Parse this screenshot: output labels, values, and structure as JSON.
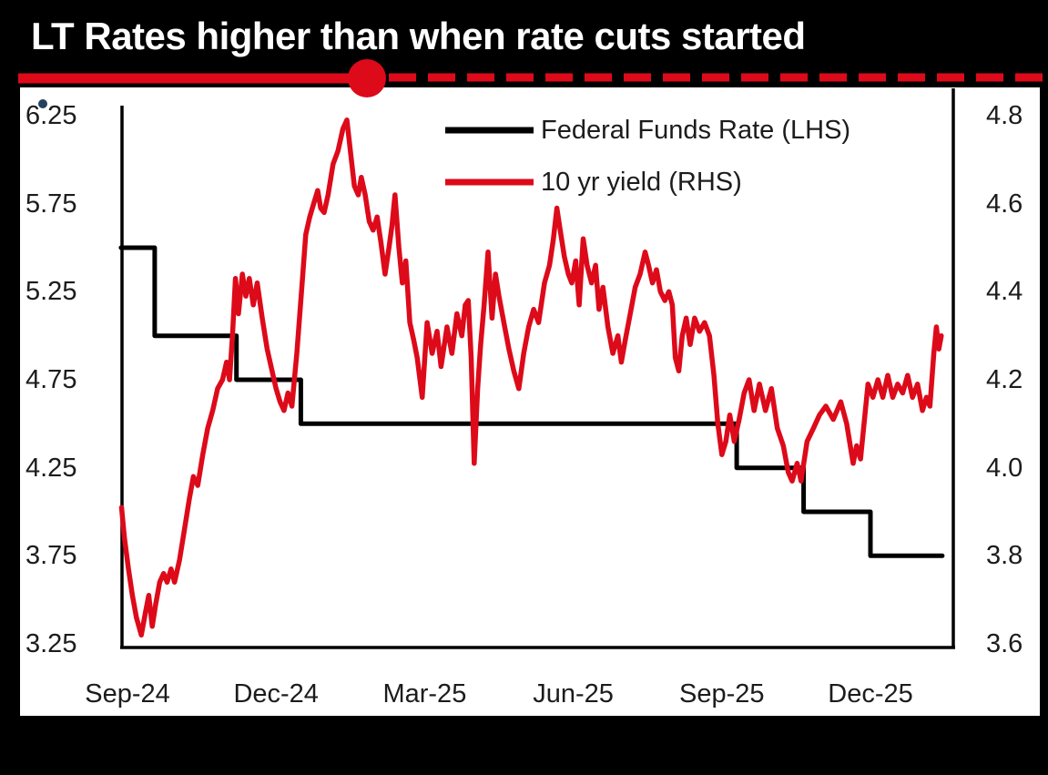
{
  "header": {
    "title": "LT Rates higher than when rate cuts started"
  },
  "decor": {
    "background": "#000000",
    "panel_bg": "#ffffff",
    "title_color": "#ffffff",
    "text_color": "#1c1c1c",
    "divider_color": "#dd0a1a",
    "stray_dot_color": "#25415f"
  },
  "chart_data": {
    "type": "line",
    "title": "LT Rates higher than when rate cuts started",
    "grid": false,
    "legend_position": "top-center-inside",
    "x_axis": {
      "unit": "months since Sep-2024",
      "tick_labels": [
        "Sep-24",
        "Dec-24",
        "Mar-25",
        "Jun-25",
        "Sep-25",
        "Dec-25"
      ],
      "tick_positions_months": [
        0,
        3,
        6,
        9,
        12,
        15
      ]
    },
    "left_axis": {
      "tick_labels": [
        "6.25",
        "5.75",
        "5.25",
        "4.75",
        "4.25",
        "3.75",
        "3.25"
      ],
      "range": [
        3.25,
        6.25
      ]
    },
    "right_axis": {
      "tick_labels": [
        "4.8",
        "4.6",
        "4.4",
        "4.2",
        "4.0",
        "3.8",
        "3.6"
      ],
      "range": [
        3.6,
        4.8
      ]
    },
    "series": [
      {
        "name": "Federal Funds Rate (LHS)",
        "axis": "left",
        "style": "step",
        "color": "#000000",
        "end_month": 16.45,
        "points": [
          [
            -0.13,
            5.5
          ],
          [
            0.55,
            5.0
          ],
          [
            2.2,
            4.75
          ],
          [
            3.5,
            4.5
          ],
          [
            12.3,
            4.25
          ],
          [
            13.65,
            4.0
          ],
          [
            15.0,
            3.75
          ]
        ]
      },
      {
        "name": "10 yr yield (RHS)",
        "axis": "right",
        "style": "line",
        "color": "#dd0a1a",
        "points": [
          [
            -0.12,
            3.91
          ],
          [
            -0.06,
            3.84
          ],
          [
            0.02,
            3.77
          ],
          [
            0.1,
            3.71
          ],
          [
            0.18,
            3.66
          ],
          [
            0.28,
            3.62
          ],
          [
            0.36,
            3.67
          ],
          [
            0.43,
            3.71
          ],
          [
            0.5,
            3.64
          ],
          [
            0.57,
            3.69
          ],
          [
            0.65,
            3.74
          ],
          [
            0.73,
            3.76
          ],
          [
            0.8,
            3.74
          ],
          [
            0.88,
            3.77
          ],
          [
            0.95,
            3.74
          ],
          [
            1.05,
            3.79
          ],
          [
            1.15,
            3.86
          ],
          [
            1.25,
            3.93
          ],
          [
            1.33,
            3.98
          ],
          [
            1.42,
            3.96
          ],
          [
            1.52,
            4.03
          ],
          [
            1.62,
            4.09
          ],
          [
            1.72,
            4.13
          ],
          [
            1.82,
            4.18
          ],
          [
            1.92,
            4.2
          ],
          [
            2.0,
            4.24
          ],
          [
            2.06,
            4.2
          ],
          [
            2.12,
            4.3
          ],
          [
            2.18,
            4.43
          ],
          [
            2.24,
            4.35
          ],
          [
            2.32,
            4.44
          ],
          [
            2.39,
            4.39
          ],
          [
            2.46,
            4.43
          ],
          [
            2.54,
            4.37
          ],
          [
            2.62,
            4.42
          ],
          [
            2.72,
            4.34
          ],
          [
            2.82,
            4.27
          ],
          [
            2.92,
            4.22
          ],
          [
            3.0,
            4.18
          ],
          [
            3.08,
            4.15
          ],
          [
            3.16,
            4.13
          ],
          [
            3.24,
            4.17
          ],
          [
            3.32,
            4.14
          ],
          [
            3.42,
            4.26
          ],
          [
            3.52,
            4.41
          ],
          [
            3.6,
            4.53
          ],
          [
            3.68,
            4.57
          ],
          [
            3.76,
            4.6
          ],
          [
            3.84,
            4.63
          ],
          [
            3.9,
            4.59
          ],
          [
            3.97,
            4.58
          ],
          [
            4.05,
            4.62
          ],
          [
            4.15,
            4.69
          ],
          [
            4.25,
            4.72
          ],
          [
            4.35,
            4.77
          ],
          [
            4.43,
            4.79
          ],
          [
            4.5,
            4.72
          ],
          [
            4.58,
            4.64
          ],
          [
            4.66,
            4.62
          ],
          [
            4.72,
            4.66
          ],
          [
            4.8,
            4.62
          ],
          [
            4.88,
            4.56
          ],
          [
            4.96,
            4.54
          ],
          [
            5.04,
            4.57
          ],
          [
            5.12,
            4.51
          ],
          [
            5.2,
            4.44
          ],
          [
            5.28,
            4.5
          ],
          [
            5.34,
            4.55
          ],
          [
            5.4,
            4.62
          ],
          [
            5.48,
            4.5
          ],
          [
            5.55,
            4.42
          ],
          [
            5.62,
            4.47
          ],
          [
            5.7,
            4.33
          ],
          [
            5.78,
            4.29
          ],
          [
            5.85,
            4.25
          ],
          [
            5.95,
            4.16
          ],
          [
            6.05,
            4.33
          ],
          [
            6.15,
            4.26
          ],
          [
            6.25,
            4.31
          ],
          [
            6.33,
            4.23
          ],
          [
            6.45,
            4.32
          ],
          [
            6.55,
            4.26
          ],
          [
            6.65,
            4.35
          ],
          [
            6.75,
            4.3
          ],
          [
            6.82,
            4.37
          ],
          [
            6.88,
            4.38
          ],
          [
            6.94,
            4.25
          ],
          [
            7.0,
            4.01
          ],
          [
            7.07,
            4.18
          ],
          [
            7.13,
            4.28
          ],
          [
            7.2,
            4.37
          ],
          [
            7.28,
            4.49
          ],
          [
            7.36,
            4.34
          ],
          [
            7.43,
            4.44
          ],
          [
            7.5,
            4.39
          ],
          [
            7.6,
            4.33
          ],
          [
            7.7,
            4.27
          ],
          [
            7.8,
            4.22
          ],
          [
            7.9,
            4.18
          ],
          [
            8.0,
            4.26
          ],
          [
            8.1,
            4.32
          ],
          [
            8.2,
            4.36
          ],
          [
            8.3,
            4.33
          ],
          [
            8.42,
            4.42
          ],
          [
            8.52,
            4.46
          ],
          [
            8.6,
            4.52
          ],
          [
            8.67,
            4.59
          ],
          [
            8.75,
            4.53
          ],
          [
            8.82,
            4.48
          ],
          [
            8.9,
            4.44
          ],
          [
            8.97,
            4.42
          ],
          [
            9.05,
            4.47
          ],
          [
            9.12,
            4.37
          ],
          [
            9.2,
            4.52
          ],
          [
            9.28,
            4.46
          ],
          [
            9.37,
            4.42
          ],
          [
            9.45,
            4.46
          ],
          [
            9.52,
            4.36
          ],
          [
            9.6,
            4.41
          ],
          [
            9.7,
            4.32
          ],
          [
            9.8,
            4.26
          ],
          [
            9.9,
            4.3
          ],
          [
            9.97,
            4.24
          ],
          [
            10.05,
            4.29
          ],
          [
            10.15,
            4.35
          ],
          [
            10.25,
            4.41
          ],
          [
            10.35,
            4.44
          ],
          [
            10.45,
            4.49
          ],
          [
            10.52,
            4.46
          ],
          [
            10.6,
            4.42
          ],
          [
            10.68,
            4.45
          ],
          [
            10.76,
            4.4
          ],
          [
            10.85,
            4.38
          ],
          [
            10.93,
            4.4
          ],
          [
            11.0,
            4.37
          ],
          [
            11.06,
            4.25
          ],
          [
            11.13,
            4.22
          ],
          [
            11.2,
            4.3
          ],
          [
            11.28,
            4.34
          ],
          [
            11.36,
            4.28
          ],
          [
            11.45,
            4.34
          ],
          [
            11.55,
            4.31
          ],
          [
            11.65,
            4.33
          ],
          [
            11.75,
            4.3
          ],
          [
            11.84,
            4.21
          ],
          [
            11.92,
            4.1
          ],
          [
            12.0,
            4.03
          ],
          [
            12.08,
            4.06
          ],
          [
            12.16,
            4.12
          ],
          [
            12.25,
            4.06
          ],
          [
            12.35,
            4.11
          ],
          [
            12.45,
            4.17
          ],
          [
            12.55,
            4.2
          ],
          [
            12.65,
            4.13
          ],
          [
            12.76,
            4.19
          ],
          [
            12.88,
            4.13
          ],
          [
            13.0,
            4.18
          ],
          [
            13.12,
            4.09
          ],
          [
            13.24,
            4.05
          ],
          [
            13.34,
            3.99
          ],
          [
            13.42,
            3.97
          ],
          [
            13.52,
            4.01
          ],
          [
            13.6,
            3.97
          ],
          [
            13.72,
            4.06
          ],
          [
            13.85,
            4.09
          ],
          [
            13.97,
            4.12
          ],
          [
            14.1,
            4.14
          ],
          [
            14.25,
            4.11
          ],
          [
            14.4,
            4.15
          ],
          [
            14.52,
            4.1
          ],
          [
            14.65,
            4.01
          ],
          [
            14.72,
            4.05
          ],
          [
            14.8,
            4.02
          ],
          [
            14.95,
            4.19
          ],
          [
            15.05,
            4.16
          ],
          [
            15.15,
            4.2
          ],
          [
            15.25,
            4.16
          ],
          [
            15.35,
            4.21
          ],
          [
            15.45,
            4.16
          ],
          [
            15.55,
            4.19
          ],
          [
            15.65,
            4.17
          ],
          [
            15.75,
            4.21
          ],
          [
            15.85,
            4.16
          ],
          [
            15.95,
            4.19
          ],
          [
            16.05,
            4.13
          ],
          [
            16.13,
            4.16
          ],
          [
            16.2,
            4.14
          ],
          [
            16.28,
            4.26
          ],
          [
            16.33,
            4.32
          ],
          [
            16.38,
            4.27
          ],
          [
            16.43,
            4.3
          ]
        ]
      }
    ]
  }
}
